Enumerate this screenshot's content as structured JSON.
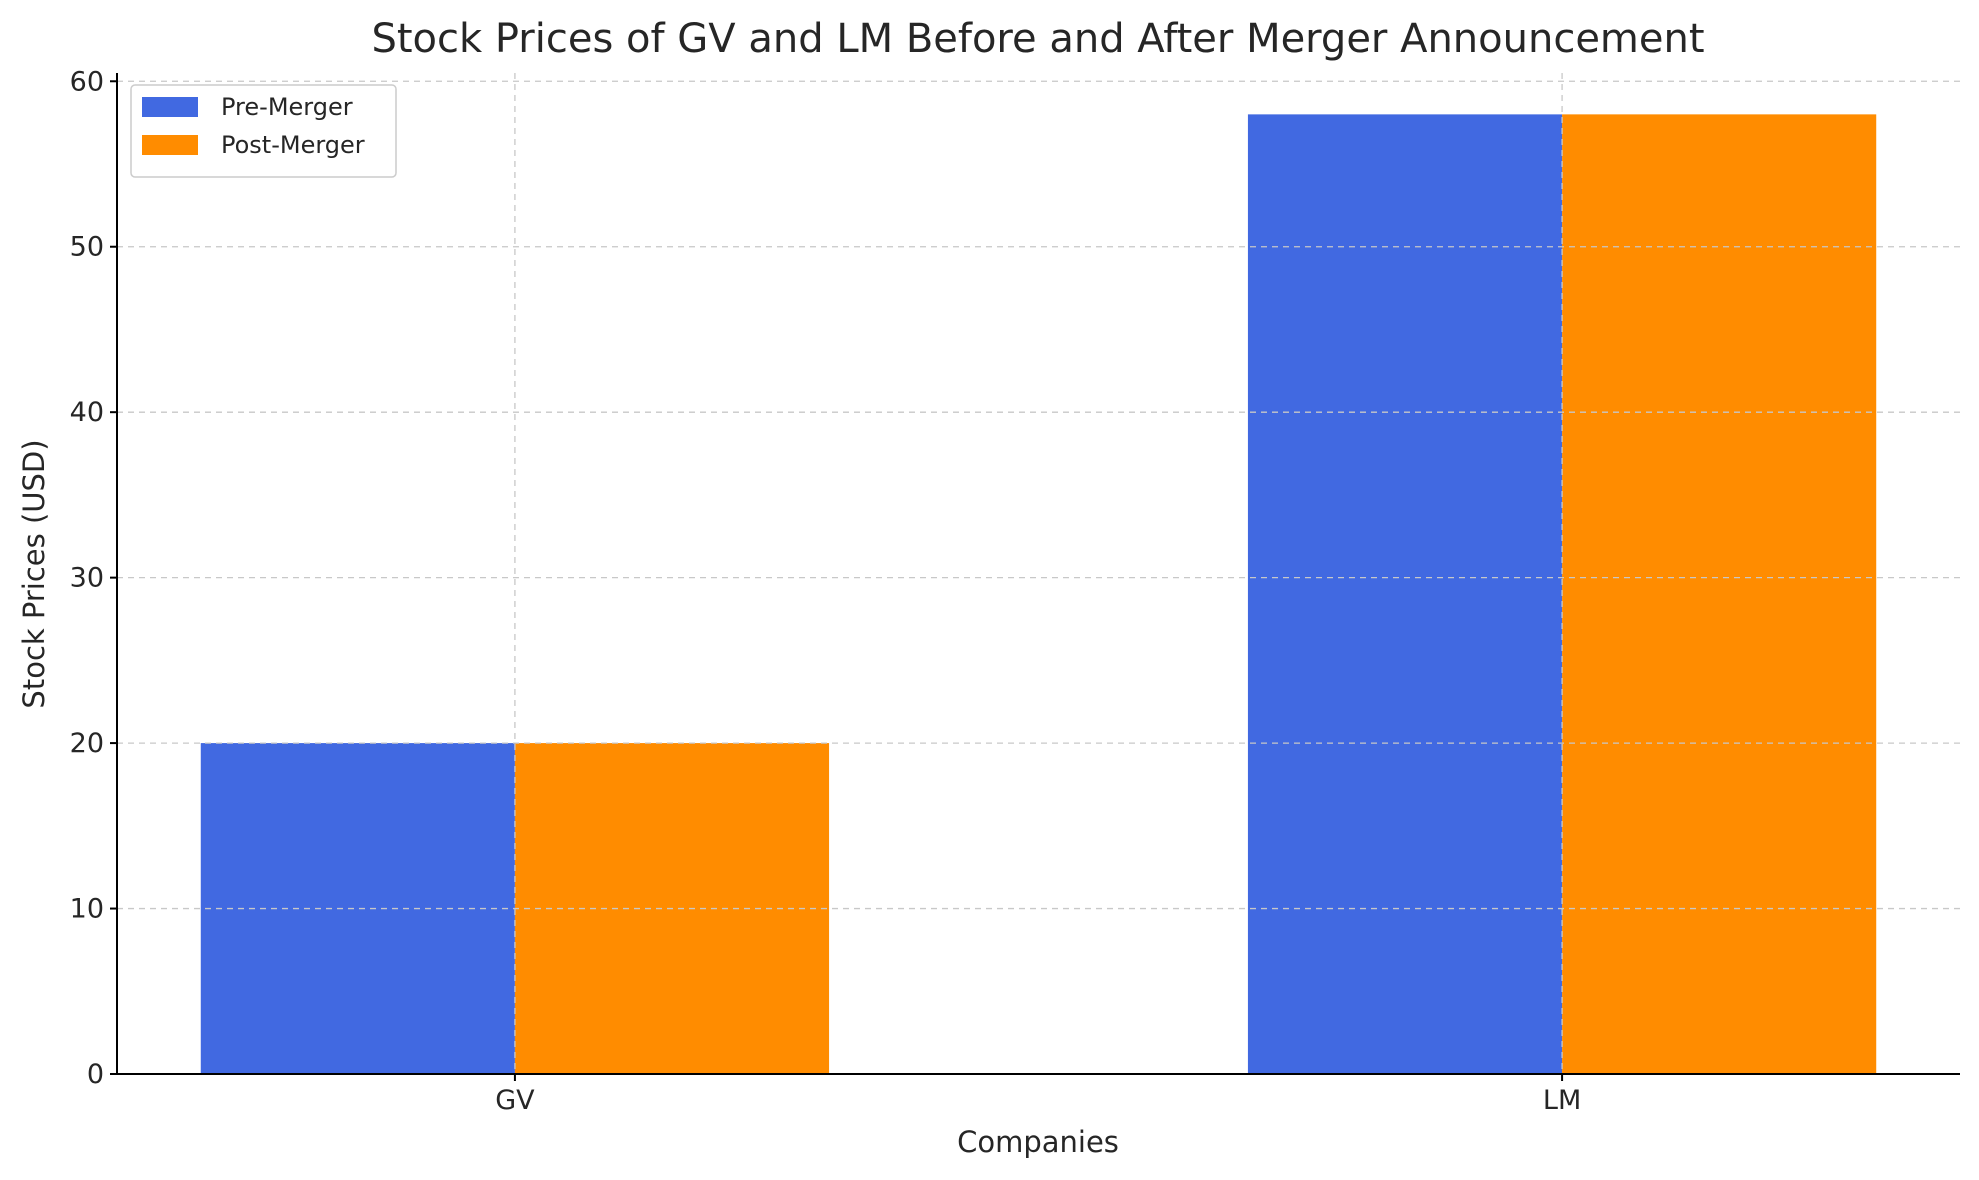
{
  "chart_data": {
    "type": "bar",
    "title": "Stock Prices of GV and LM Before and After Merger Announcement",
    "xlabel": "Companies",
    "ylabel": "Stock Prices (USD)",
    "categories": [
      "GV",
      "LM"
    ],
    "series": [
      {
        "name": "Pre-Merger",
        "values": [
          20,
          58
        ],
        "color": "#4169e1"
      },
      {
        "name": "Post-Merger",
        "values": [
          20,
          58
        ],
        "color": "#ff8c00"
      }
    ],
    "ylim": [
      0,
      60.5
    ],
    "yticks": [
      0,
      10,
      20,
      30,
      40,
      50,
      60
    ],
    "grid": true,
    "legend_position": "top-left"
  }
}
